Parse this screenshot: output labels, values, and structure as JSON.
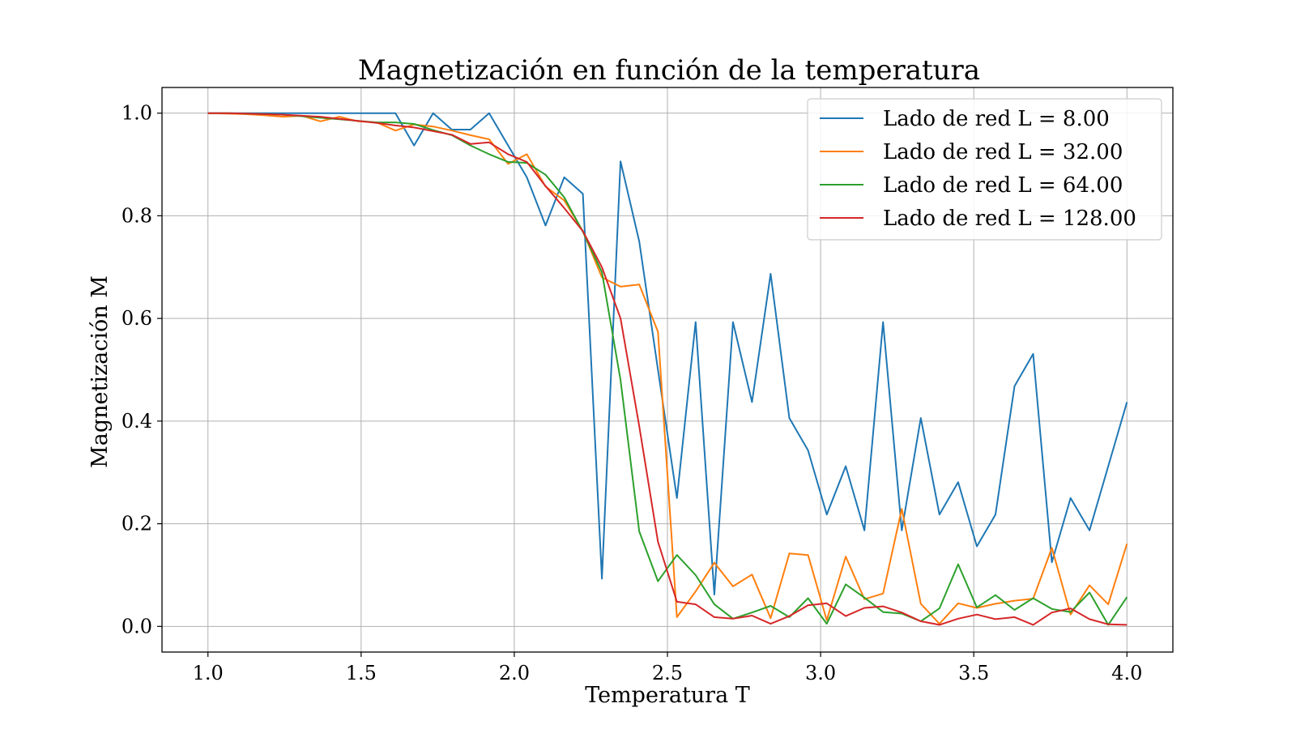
{
  "chart_data": {
    "type": "line",
    "title": "Magnetización en función de la temperatura",
    "xlabel": "Temperatura T",
    "ylabel": "Magnetización M",
    "xlim": [
      0.85,
      4.15
    ],
    "ylim": [
      -0.05,
      1.05
    ],
    "xticks": [
      "1.0",
      "1.5",
      "2.0",
      "2.5",
      "3.0",
      "3.5",
      "4.0"
    ],
    "yticks": [
      "0.0",
      "0.2",
      "0.4",
      "0.6",
      "0.8",
      "1.0"
    ],
    "grid": true,
    "legend_position": "top-right",
    "x": [
      1.0,
      1.061,
      1.122,
      1.184,
      1.245,
      1.306,
      1.367,
      1.429,
      1.49,
      1.551,
      1.612,
      1.673,
      1.735,
      1.796,
      1.857,
      1.918,
      1.98,
      2.041,
      2.102,
      2.163,
      2.224,
      2.286,
      2.347,
      2.408,
      2.469,
      2.531,
      2.592,
      2.653,
      2.714,
      2.776,
      2.837,
      2.898,
      2.959,
      3.02,
      3.082,
      3.143,
      3.204,
      3.265,
      3.327,
      3.388,
      3.449,
      3.51,
      3.571,
      3.633,
      3.694,
      3.755,
      3.816,
      3.878,
      3.939,
      4.0
    ],
    "series": [
      {
        "name": "Lado de red L = 8.00",
        "color": "#1f77b4",
        "values": [
          1.0,
          1.0,
          1.0,
          1.0,
          1.0,
          1.0,
          1.0,
          1.0,
          1.0,
          1.0,
          1.0,
          0.937,
          1.0,
          0.968,
          0.968,
          1.0,
          0.937,
          0.875,
          0.781,
          0.875,
          0.843,
          0.093,
          0.906,
          0.75,
          0.5,
          0.25,
          0.593,
          0.062,
          0.593,
          0.437,
          0.687,
          0.406,
          0.343,
          0.218,
          0.312,
          0.187,
          0.593,
          0.187,
          0.406,
          0.218,
          0.281,
          0.156,
          0.218,
          0.468,
          0.531,
          0.125,
          0.25,
          0.187,
          0.312,
          0.437
        ]
      },
      {
        "name": "Lado de red L = 32.00",
        "color": "#ff7f0e",
        "values": [
          1.0,
          0.999,
          0.998,
          0.996,
          0.993,
          0.995,
          0.984,
          0.993,
          0.984,
          0.982,
          0.966,
          0.978,
          0.974,
          0.966,
          0.957,
          0.949,
          0.901,
          0.92,
          0.857,
          0.83,
          0.77,
          0.68,
          0.662,
          0.666,
          0.574,
          0.018,
          0.068,
          0.124,
          0.078,
          0.101,
          0.016,
          0.142,
          0.139,
          0.012,
          0.136,
          0.053,
          0.064,
          0.229,
          0.044,
          0.005,
          0.045,
          0.036,
          0.044,
          0.05,
          0.054,
          0.153,
          0.023,
          0.08,
          0.043,
          0.161
        ]
      },
      {
        "name": "Lado de red L = 64.00",
        "color": "#2ca02c",
        "values": [
          1.0,
          1.0,
          0.999,
          0.998,
          0.997,
          0.994,
          0.991,
          0.988,
          0.985,
          0.982,
          0.982,
          0.979,
          0.967,
          0.957,
          0.937,
          0.92,
          0.905,
          0.903,
          0.88,
          0.836,
          0.769,
          0.69,
          0.48,
          0.185,
          0.088,
          0.139,
          0.1,
          0.043,
          0.015,
          0.027,
          0.04,
          0.018,
          0.055,
          0.005,
          0.082,
          0.056,
          0.028,
          0.025,
          0.01,
          0.035,
          0.121,
          0.037,
          0.061,
          0.032,
          0.055,
          0.034,
          0.028,
          0.066,
          0.003,
          0.057
        ]
      },
      {
        "name": "Lado de red L = 128.00",
        "color": "#d62728",
        "values": [
          1.0,
          1.0,
          0.999,
          0.998,
          0.997,
          0.995,
          0.993,
          0.989,
          0.985,
          0.981,
          0.976,
          0.972,
          0.965,
          0.958,
          0.94,
          0.943,
          0.92,
          0.905,
          0.858,
          0.815,
          0.77,
          0.7,
          0.6,
          0.39,
          0.165,
          0.048,
          0.043,
          0.018,
          0.015,
          0.021,
          0.005,
          0.02,
          0.041,
          0.045,
          0.02,
          0.036,
          0.039,
          0.027,
          0.01,
          0.003,
          0.015,
          0.023,
          0.014,
          0.018,
          0.003,
          0.027,
          0.035,
          0.014,
          0.004,
          0.003
        ]
      }
    ]
  }
}
